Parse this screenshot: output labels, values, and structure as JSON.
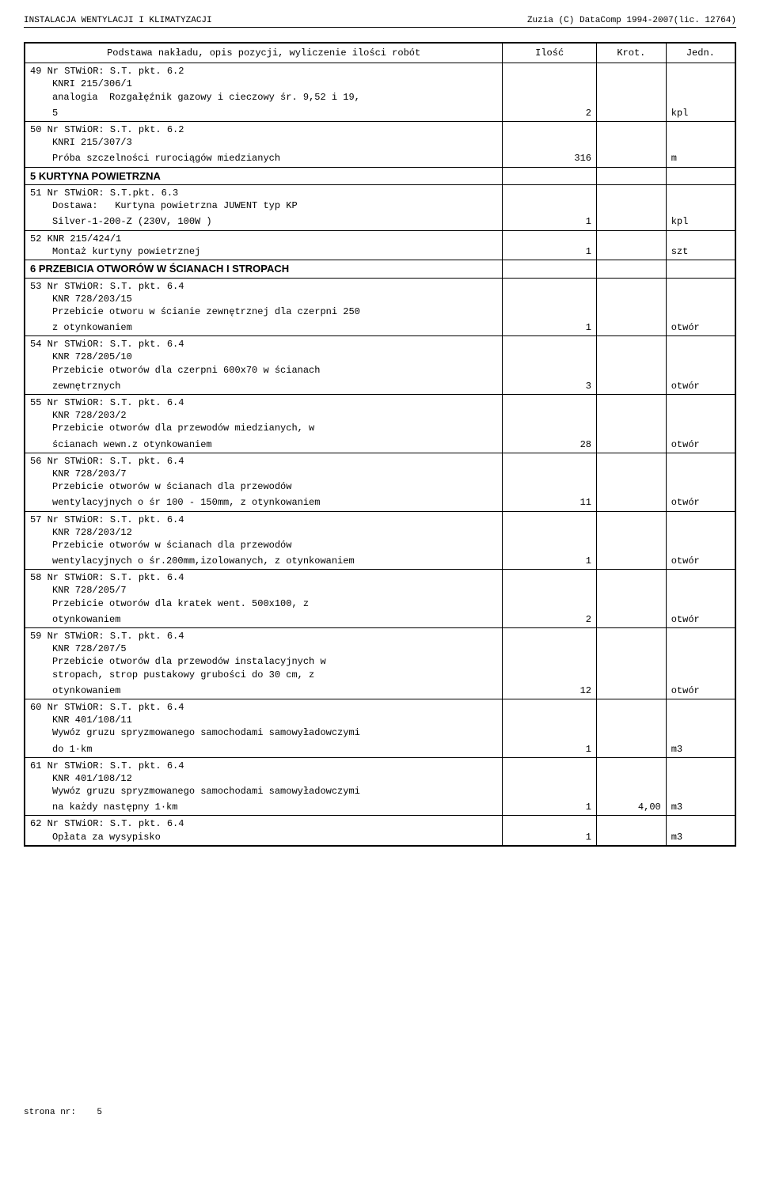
{
  "header": {
    "left": "INSTALACJA WENTYLACJI I KLIMATYZACJI",
    "right": "Zuzia (C) DataComp 1994-2007(lic. 12764)"
  },
  "columns": {
    "c1": "Podstawa nakładu, opis pozycji, wyliczenie ilości robót",
    "c2": "Ilość",
    "c3": "Krot.",
    "c4": "Jedn."
  },
  "rows": [
    {
      "type": "item",
      "no": "49",
      "ref": "Nr STWiOR: S.T. pkt. 6.2",
      "body": "KNRI 215/306/1\nanalogia  Rozgałęźnik gazowy i cieczowy śr. 9,52 i 19,\n5",
      "qty": "2",
      "krot": "",
      "unit": "kpl"
    },
    {
      "type": "item",
      "no": "50",
      "ref": "Nr STWiOR: S.T. pkt. 6.2",
      "body": "KNRI 215/307/3\nPróba szczelności rurociągów miedzianych",
      "qty": "316",
      "krot": "",
      "unit": "m"
    },
    {
      "type": "section",
      "title": "5 KURTYNA POWIETRZNA"
    },
    {
      "type": "item",
      "no": "51",
      "ref": "Nr STWiOR: S.T.pkt. 6.3",
      "body": "Dostawa:   Kurtyna powietrzna JUWENT typ KP\nSilver-1-200-Z (230V, 100W )",
      "qty": "1",
      "krot": "",
      "unit": "kpl"
    },
    {
      "type": "item",
      "no": "52",
      "ref": "KNR 215/424/1",
      "body": "Montaż kurtyny powietrznej",
      "qty": "1",
      "krot": "",
      "unit": "szt"
    },
    {
      "type": "section",
      "title": "6 PRZEBICIA OTWORÓW W ŚCIANACH I STROPACH"
    },
    {
      "type": "item",
      "no": "53",
      "ref": "Nr STWiOR: S.T. pkt. 6.4",
      "body": "KNR 728/203/15\nPrzebicie otworu w ścianie zewnętrznej dla czerpni 250\nz otynkowaniem",
      "qty": "1",
      "krot": "",
      "unit": "otwór"
    },
    {
      "type": "item",
      "no": "54",
      "ref": "Nr STWiOR: S.T. pkt. 6.4",
      "body": "KNR 728/205/10\nPrzebicie otworów dla czerpni 600x70 w ścianach\nzewnętrznych",
      "qty": "3",
      "krot": "",
      "unit": "otwór"
    },
    {
      "type": "item",
      "no": "55",
      "ref": "Nr STWiOR: S.T. pkt. 6.4",
      "body": "KNR 728/203/2\nPrzebicie otworów dla przewodów miedzianych, w\nścianach wewn.z otynkowaniem",
      "qty": "28",
      "krot": "",
      "unit": "otwór"
    },
    {
      "type": "item",
      "no": "56",
      "ref": "Nr STWiOR: S.T. pkt. 6.4",
      "body": "KNR 728/203/7\nPrzebicie otworów w ścianach dla przewodów\nwentylacyjnych o śr 100 - 150mm, z otynkowaniem",
      "qty": "11",
      "krot": "",
      "unit": "otwór"
    },
    {
      "type": "item",
      "no": "57",
      "ref": "Nr STWiOR: S.T. pkt. 6.4",
      "body": "KNR 728/203/12\nPrzebicie otworów w ścianach dla przewodów\nwentylacyjnych o śr.200mm,izolowanych, z otynkowaniem",
      "qty": "1",
      "krot": "",
      "unit": "otwór"
    },
    {
      "type": "item",
      "no": "58",
      "ref": "Nr STWiOR: S.T. pkt. 6.4",
      "body": "KNR 728/205/7\nPrzebicie otworów dla kratek went. 500x100, z\notynkowaniem",
      "qty": "2",
      "krot": "",
      "unit": "otwór"
    },
    {
      "type": "item",
      "no": "59",
      "ref": "Nr STWiOR: S.T. pkt. 6.4",
      "body": "KNR 728/207/5\nPrzebicie otworów dla przewodów instalacyjnych w\nstropach, strop pustakowy grubości do 30 cm, z\notynkowaniem",
      "qty": "12",
      "krot": "",
      "unit": "otwór"
    },
    {
      "type": "item",
      "no": "60",
      "ref": "Nr STWiOR: S.T. pkt. 6.4",
      "body": "KNR 401/108/11\nWywóz gruzu spryzmowanego samochodami samowyładowczymi\ndo 1·km",
      "qty": "1",
      "krot": "",
      "unit": "m3"
    },
    {
      "type": "item",
      "no": "61",
      "ref": "Nr STWiOR: S.T. pkt. 6.4",
      "body": "KNR 401/108/12\nWywóz gruzu spryzmowanego samochodami samowyładowczymi\nna każdy następny 1·km",
      "qty": "1",
      "krot": "4,00",
      "unit": "m3"
    },
    {
      "type": "item",
      "no": "62",
      "ref": "Nr STWiOR: S.T. pkt. 6.4",
      "body": "Opłata za wysypisko",
      "qty": "1",
      "krot": "",
      "unit": "m3"
    }
  ],
  "footer": {
    "label": "strona nr:",
    "page": "5"
  }
}
